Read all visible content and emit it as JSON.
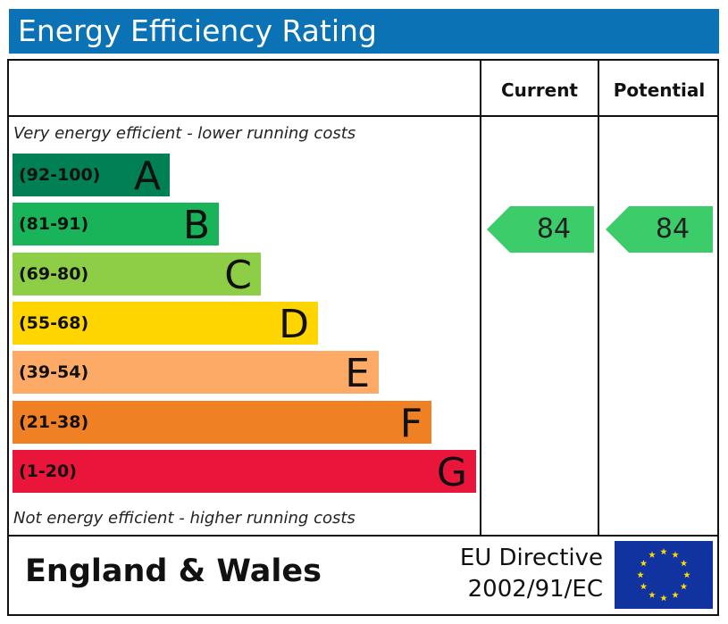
{
  "title": "Energy Efficiency Rating",
  "header": {
    "current": "Current",
    "potential": "Potential"
  },
  "top_note": "Very energy efficient - lower running costs",
  "bottom_note": "Not energy efficient - higher running costs",
  "bands": [
    {
      "range": "(92-100)",
      "letter": "A"
    },
    {
      "range": "(81-91)",
      "letter": "B"
    },
    {
      "range": "(69-80)",
      "letter": "C"
    },
    {
      "range": "(55-68)",
      "letter": "D"
    },
    {
      "range": "(39-54)",
      "letter": "E"
    },
    {
      "range": "(21-38)",
      "letter": "F"
    },
    {
      "range": "(1-20)",
      "letter": "G"
    }
  ],
  "current": 84,
  "potential": 84,
  "footer": {
    "region": "England & Wales",
    "directive_line1": "EU Directive",
    "directive_line2": "2002/91/EC"
  }
}
